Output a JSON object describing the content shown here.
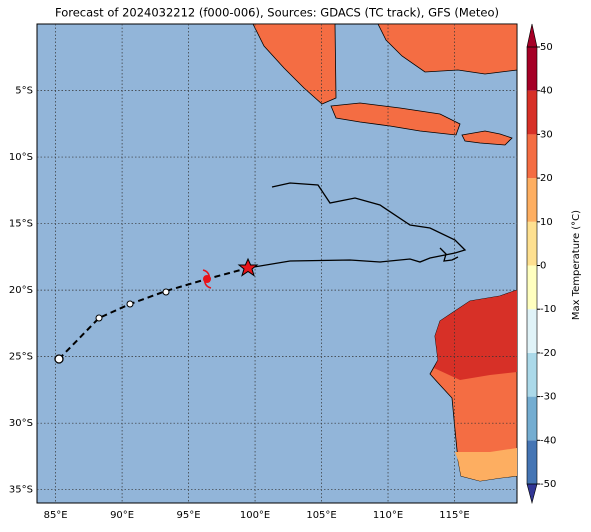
{
  "chart_data": {
    "type": "map",
    "title": "Forecast of 2024032212 (f000-006), Sources: GDACS (TC track), GFS (Meteo)",
    "xlim": [
      83.6,
      119.7
    ],
    "ylim": [
      -36,
      0
    ],
    "xticks": [
      {
        "value": 85,
        "label": "85°E"
      },
      {
        "value": 90,
        "label": "90°E"
      },
      {
        "value": 95,
        "label": "95°E"
      },
      {
        "value": 100,
        "label": "100°E"
      },
      {
        "value": 105,
        "label": "105°E"
      },
      {
        "value": 110,
        "label": "110°E"
      },
      {
        "value": 115,
        "label": "115°E"
      }
    ],
    "yticks": [
      {
        "value": -5,
        "label": "5°S"
      },
      {
        "value": -10,
        "label": "10°S"
      },
      {
        "value": -15,
        "label": "15°S"
      },
      {
        "value": -20,
        "label": "20°S"
      },
      {
        "value": -25,
        "label": "25°S"
      },
      {
        "value": -30,
        "label": "30°S"
      },
      {
        "value": -35,
        "label": "35°S"
      }
    ],
    "grid": true,
    "colorbar": {
      "label": "Max Temperature (°C)",
      "lim": [
        -50,
        50
      ],
      "ticks": [
        -50,
        -40,
        -30,
        -20,
        -10,
        0,
        10,
        20,
        30,
        40,
        50
      ],
      "colors": [
        "#313695",
        "#4575b4",
        "#74add1",
        "#abd9e9",
        "#e0f3f8",
        "#ffffbf",
        "#fee090",
        "#fdae61",
        "#f46d43",
        "#d73027",
        "#a50026"
      ]
    }
  }
}
